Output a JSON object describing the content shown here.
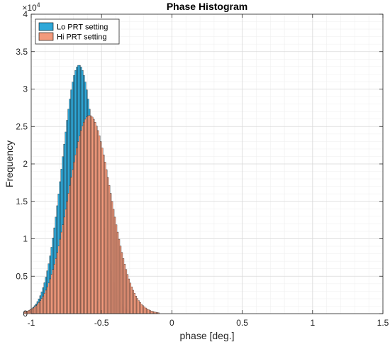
{
  "chart_data": {
    "type": "bar",
    "title": "Phase Histogram",
    "xlabel": "phase [deg.]",
    "ylabel": "Frequency",
    "xlim": [
      -1,
      1.5
    ],
    "ylim": [
      0,
      40000
    ],
    "x_ticks": [
      "-1",
      "-0.5",
      "0",
      "0.5",
      "1",
      "1.5"
    ],
    "x_tick_values": [
      -1,
      -0.5,
      0,
      0.5,
      1,
      1.5
    ],
    "y_ticks": [
      "0",
      "0.5",
      "1",
      "1.5",
      "2",
      "2.5",
      "3",
      "3.5",
      "4"
    ],
    "y_tick_values": [
      0,
      5000,
      10000,
      15000,
      20000,
      25000,
      30000,
      35000,
      40000
    ],
    "y_exponent_label": "×10",
    "y_exponent": "4",
    "grid": true,
    "minor_grid": true,
    "legend_position": "top-left",
    "series": [
      {
        "name": "Lo PRT setting",
        "color": "#2ea8d9",
        "bin_width": 0.01,
        "mean": -0.66,
        "std": 0.12,
        "peak": 33200,
        "bin_range": [
          -1.05,
          -0.25
        ]
      },
      {
        "name": "Hi PRT setting",
        "color": "#f39a7c",
        "bin_width": 0.01,
        "mean": -0.585,
        "std": 0.15,
        "peak": 26500,
        "bin_range": [
          -1.05,
          -0.1
        ]
      }
    ]
  }
}
